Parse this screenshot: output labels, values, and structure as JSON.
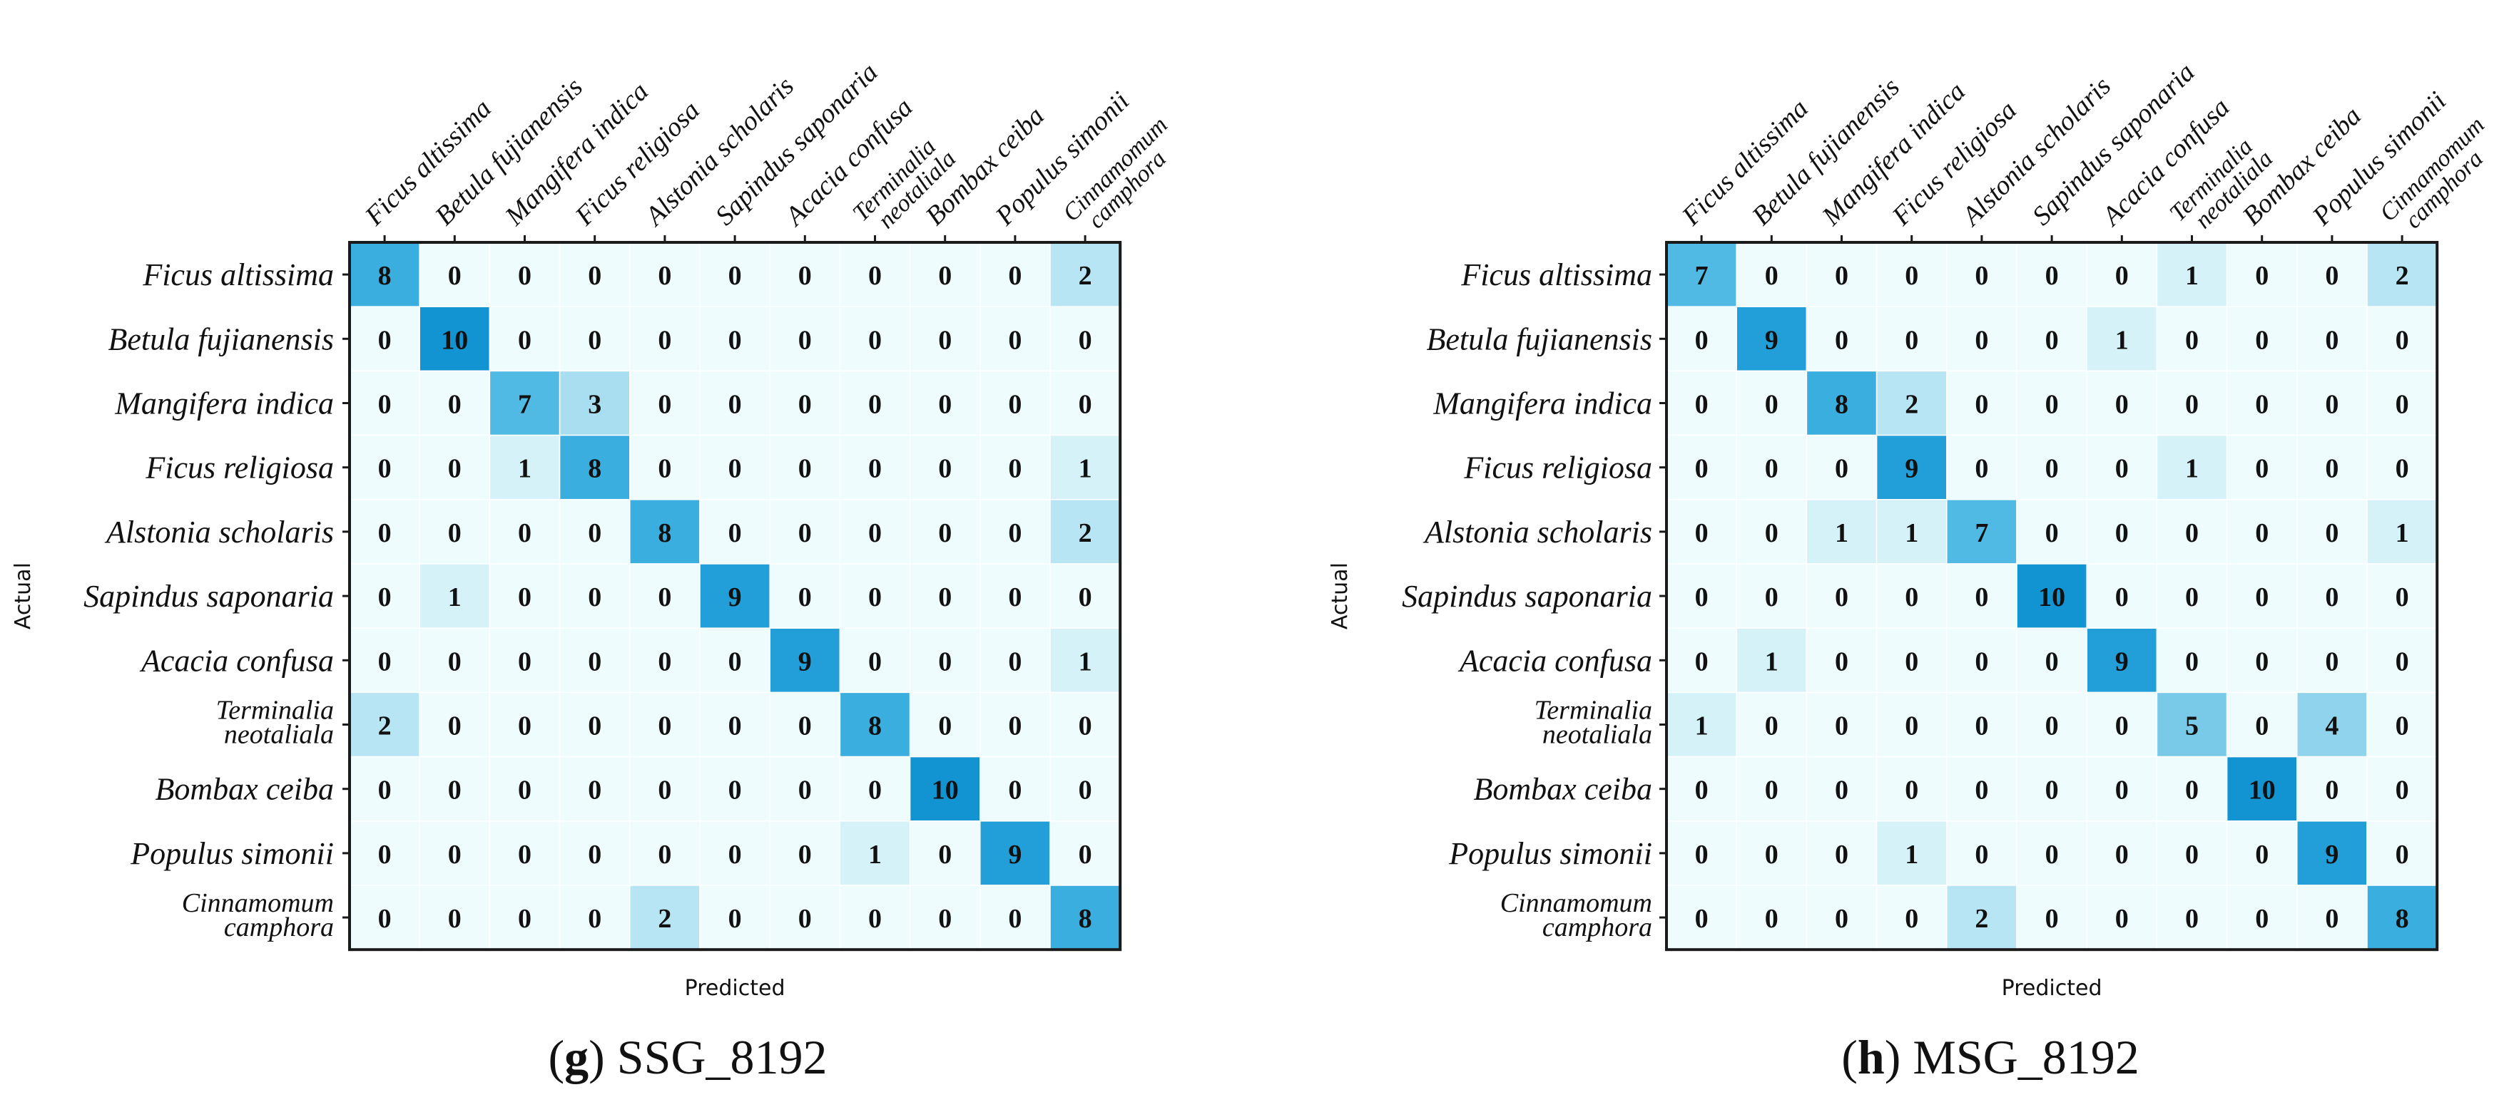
{
  "colors": {
    "c0": "#effcfe",
    "c1": "#d5f2f9",
    "c2": "#b8e5f3",
    "c3": "#a9ddf0",
    "c4": "#8fd3ec",
    "c5": "#79cae8",
    "c7": "#50bae4",
    "c8": "#3aaede",
    "c9": "#229fd9",
    "c10": "#1293d2",
    "border": "#1a1a1a",
    "text": "#111111"
  },
  "chart_data": [
    {
      "type": "heatmap",
      "panel_letter": "g",
      "caption": " SSG_8192",
      "xlabel": "Predicted",
      "ylabel": "Actual",
      "row_labels": [
        [
          "Ficus altissima"
        ],
        [
          "Betula fujianensis"
        ],
        [
          "Mangifera indica"
        ],
        [
          "Ficus religiosa"
        ],
        [
          "Alstonia scholaris"
        ],
        [
          "Sapindus saponaria"
        ],
        [
          "Acacia confusa"
        ],
        [
          "Terminalia",
          "neotaliala"
        ],
        [
          "Bombax ceiba"
        ],
        [
          "Populus simonii"
        ],
        [
          "Cinnamomum",
          "camphora"
        ]
      ],
      "col_labels": [
        [
          "Ficus altissima"
        ],
        [
          "Betula fujianensis"
        ],
        [
          "Mangifera indica"
        ],
        [
          "Ficus religiosa"
        ],
        [
          "Alstonia scholaris"
        ],
        [
          "Sapindus saponaria"
        ],
        [
          "Acacia confusa"
        ],
        [
          "Terminalia",
          "neotaliala"
        ],
        [
          "Bombax ceiba"
        ],
        [
          "Populus simonii"
        ],
        [
          "Cinnamomum",
          "camphora"
        ]
      ],
      "values": [
        [
          8,
          0,
          0,
          0,
          0,
          0,
          0,
          0,
          0,
          0,
          2
        ],
        [
          0,
          10,
          0,
          0,
          0,
          0,
          0,
          0,
          0,
          0,
          0
        ],
        [
          0,
          0,
          7,
          3,
          0,
          0,
          0,
          0,
          0,
          0,
          0
        ],
        [
          0,
          0,
          1,
          8,
          0,
          0,
          0,
          0,
          0,
          0,
          1
        ],
        [
          0,
          0,
          0,
          0,
          8,
          0,
          0,
          0,
          0,
          0,
          2
        ],
        [
          0,
          1,
          0,
          0,
          0,
          9,
          0,
          0,
          0,
          0,
          0
        ],
        [
          0,
          0,
          0,
          0,
          0,
          0,
          9,
          0,
          0,
          0,
          1
        ],
        [
          2,
          0,
          0,
          0,
          0,
          0,
          0,
          8,
          0,
          0,
          0
        ],
        [
          0,
          0,
          0,
          0,
          0,
          0,
          0,
          0,
          10,
          0,
          0
        ],
        [
          0,
          0,
          0,
          0,
          0,
          0,
          0,
          1,
          0,
          9,
          0
        ],
        [
          0,
          0,
          0,
          0,
          2,
          0,
          0,
          0,
          0,
          0,
          8
        ]
      ]
    },
    {
      "type": "heatmap",
      "panel_letter": "h",
      "caption": " MSG_8192",
      "xlabel": "Predicted",
      "ylabel": "Actual",
      "row_labels": [
        [
          "Ficus altissima"
        ],
        [
          "Betula fujianensis"
        ],
        [
          "Mangifera indica"
        ],
        [
          "Ficus religiosa"
        ],
        [
          "Alstonia scholaris"
        ],
        [
          "Sapindus saponaria"
        ],
        [
          "Acacia confusa"
        ],
        [
          "Terminalia",
          "neotaliala"
        ],
        [
          "Bombax ceiba"
        ],
        [
          "Populus simonii"
        ],
        [
          "Cinnamomum",
          "camphora"
        ]
      ],
      "col_labels": [
        [
          "Ficus altissima"
        ],
        [
          "Betula fujianensis"
        ],
        [
          "Mangifera indica"
        ],
        [
          "Ficus religiosa"
        ],
        [
          "Alstonia scholaris"
        ],
        [
          "Sapindus saponaria"
        ],
        [
          "Acacia confusa"
        ],
        [
          "Terminalia",
          "neotaliala"
        ],
        [
          "Bombax ceiba"
        ],
        [
          "Populus simonii"
        ],
        [
          "Cinnamomum",
          "camphora"
        ]
      ],
      "values": [
        [
          7,
          0,
          0,
          0,
          0,
          0,
          0,
          1,
          0,
          0,
          2
        ],
        [
          0,
          9,
          0,
          0,
          0,
          0,
          1,
          0,
          0,
          0,
          0
        ],
        [
          0,
          0,
          8,
          2,
          0,
          0,
          0,
          0,
          0,
          0,
          0
        ],
        [
          0,
          0,
          0,
          9,
          0,
          0,
          0,
          1,
          0,
          0,
          0
        ],
        [
          0,
          0,
          1,
          1,
          7,
          0,
          0,
          0,
          0,
          0,
          1
        ],
        [
          0,
          0,
          0,
          0,
          0,
          10,
          0,
          0,
          0,
          0,
          0
        ],
        [
          0,
          1,
          0,
          0,
          0,
          0,
          9,
          0,
          0,
          0,
          0
        ],
        [
          1,
          0,
          0,
          0,
          0,
          0,
          0,
          5,
          0,
          4,
          0
        ],
        [
          0,
          0,
          0,
          0,
          0,
          0,
          0,
          0,
          10,
          0,
          0
        ],
        [
          0,
          0,
          0,
          1,
          0,
          0,
          0,
          0,
          0,
          9,
          0
        ],
        [
          0,
          0,
          0,
          0,
          2,
          0,
          0,
          0,
          0,
          0,
          8
        ]
      ]
    }
  ]
}
